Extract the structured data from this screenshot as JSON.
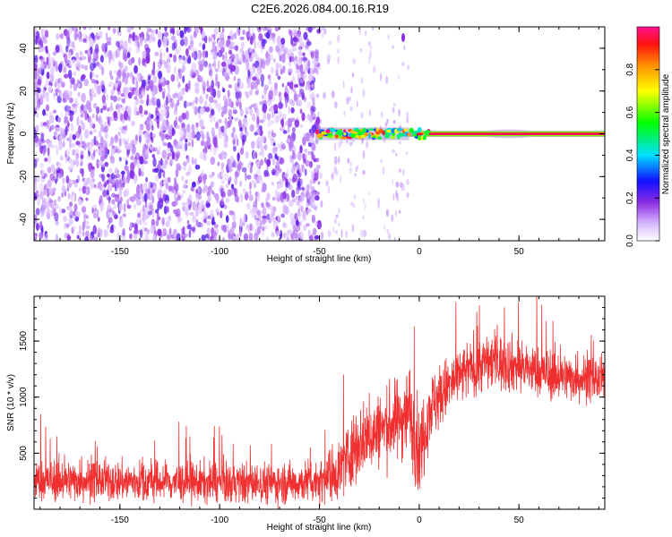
{
  "title": "C2E6.2026.084.00.16.R19",
  "colors": {
    "spectrogram_scatter": "#7a2cf0",
    "band": "#ff2060",
    "snr_line": "#f03030",
    "axis": "#000000"
  },
  "chart_data": [
    {
      "type": "heatmap",
      "xlabel": "Height of straight line (km)",
      "ylabel": "Frequency (Hz)",
      "xlim": [
        -193,
        93
      ],
      "ylim": [
        -50,
        50
      ],
      "x_ticks": [
        -150,
        -100,
        -50,
        0,
        50
      ],
      "x_tick_labels": [
        "-150",
        "-100",
        "-50",
        "0",
        "50"
      ],
      "y_ticks": [
        -40,
        -20,
        0,
        20,
        40
      ],
      "y_tick_labels": [
        "-40",
        "-20",
        "0",
        "20",
        "40"
      ],
      "colorbar": {
        "label": "Normalized spectral amplitude",
        "range": [
          0,
          1
        ],
        "ticks": [
          0.0,
          0.2,
          0.4,
          0.6,
          0.8
        ],
        "tick_labels": [
          "0.0",
          "0.2",
          "0.4",
          "0.6",
          "0.8"
        ],
        "colormap": "rainbow: white - violet - blue - cyan - green - yellow - orange - red - magenta"
      },
      "regions": [
        {
          "x": [
            -193,
            -50
          ],
          "freq": [
            -50,
            50
          ],
          "amplitude": "0.05-0.35 (noise)"
        },
        {
          "x": [
            -50,
            8
          ],
          "freq": [
            -2,
            3
          ],
          "amplitude": "0.3-1.0 (signal band)"
        },
        {
          "x": [
            8,
            93
          ],
          "freq": [
            -1,
            1
          ],
          "amplitude": "0.85-1.0 (signal band)"
        }
      ],
      "grid": false
    },
    {
      "type": "line",
      "xlabel": "Height of straight line (km)",
      "ylabel": "SNR (10 * v/v)",
      "xlim": [
        -193,
        93
      ],
      "ylim": [
        0,
        1900
      ],
      "x_ticks": [
        -150,
        -100,
        -50,
        0,
        50
      ],
      "x_tick_labels": [
        "-150",
        "-100",
        "-50",
        "0",
        "50"
      ],
      "y_ticks": [
        500,
        1000,
        1500
      ],
      "y_tick_labels": [
        "500",
        "1000",
        "1500"
      ],
      "series": [
        {
          "x": [
            -193,
            -170,
            -150,
            -120,
            -90,
            -60,
            -50,
            -40,
            -35,
            -30,
            -20,
            -10,
            -5,
            0,
            5,
            15,
            25,
            35,
            45,
            55,
            65,
            75,
            93
          ],
          "y": [
            250,
            260,
            250,
            240,
            230,
            240,
            260,
            350,
            500,
            600,
            700,
            800,
            900,
            500,
            900,
            1100,
            1250,
            1320,
            1300,
            1250,
            1200,
            1180,
            1150
          ],
          "noise_band": [
            200,
            200,
            200,
            200,
            200,
            200,
            220,
            300,
            350,
            350,
            350,
            400,
            450,
            450,
            350,
            300,
            280,
            280,
            280,
            250,
            250,
            230,
            220
          ]
        }
      ],
      "grid": false
    }
  ]
}
